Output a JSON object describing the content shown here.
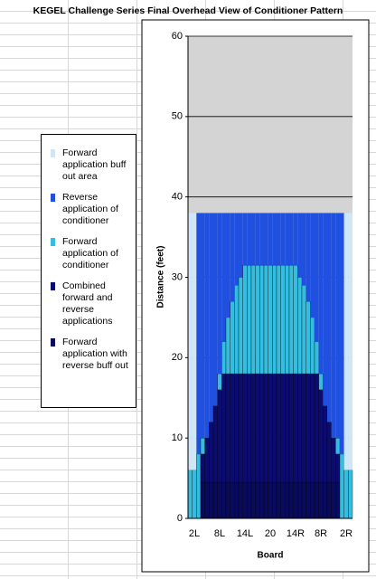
{
  "chart_data": {
    "type": "stacked_bar",
    "title": "KEGEL Challenge Series Final Overhead View of Conditioner Pattern",
    "x_label": "Board",
    "y_label": "Distance (feet)",
    "categories": [
      null,
      "2L",
      null,
      null,
      null,
      null,
      null,
      "8L",
      null,
      null,
      null,
      null,
      null,
      "14L",
      null,
      null,
      null,
      null,
      null,
      "20",
      null,
      null,
      null,
      null,
      null,
      "14R",
      null,
      null,
      null,
      null,
      null,
      "8R",
      null,
      null,
      null,
      null,
      null,
      "2R",
      null
    ],
    "series": [
      {
        "name": "Forward application buff out area",
        "color": "#cfe6f7",
        "values": [
          32,
          32,
          0,
          0,
          0,
          0,
          0,
          0,
          0,
          0,
          0,
          0,
          0,
          0,
          0,
          0,
          0,
          0,
          0,
          0,
          0,
          0,
          0,
          0,
          0,
          0,
          0,
          0,
          0,
          0,
          0,
          0,
          0,
          0,
          0,
          0,
          0,
          32,
          32
        ]
      },
      {
        "name": "Reverse application of conditioner",
        "color": "#2050e0",
        "values": [
          0,
          0,
          30,
          28,
          28,
          26,
          24,
          20,
          16,
          13,
          11,
          9,
          8,
          6.5,
          6.5,
          6.5,
          6.5,
          6.5,
          6.5,
          6.5,
          6.5,
          6.5,
          6.5,
          6.5,
          6.5,
          6.5,
          8,
          9,
          11,
          13,
          16,
          20,
          24,
          26,
          28,
          28,
          30,
          0,
          0
        ]
      },
      {
        "name": "Forward application of conditioner",
        "color": "#35bde0",
        "values": [
          6,
          6,
          8,
          2,
          0,
          0,
          0,
          2,
          4,
          7,
          9,
          11,
          12,
          13.5,
          13.5,
          13.5,
          13.5,
          13.5,
          13.5,
          13.5,
          13.5,
          13.5,
          13.5,
          13.5,
          13.5,
          13.5,
          12,
          11,
          9,
          7,
          4,
          2,
          0,
          0,
          0,
          2,
          8,
          6,
          6
        ]
      },
      {
        "name": "Combined forward and reverse applications",
        "color": "#0c0c70",
        "values": [
          0,
          0,
          0,
          3.5,
          5.5,
          7.5,
          9.5,
          11.5,
          13.5,
          13.5,
          13.5,
          13.5,
          13.5,
          13.5,
          13.5,
          13.5,
          13.5,
          13.5,
          13.5,
          13.5,
          13.5,
          13.5,
          13.5,
          13.5,
          13.5,
          13.5,
          13.5,
          13.5,
          13.5,
          13.5,
          13.5,
          11.5,
          9.5,
          7.5,
          5.5,
          3.5,
          0,
          0,
          0
        ]
      },
      {
        "name": "Forward application with reverse buff out",
        "color": "#0a0a5c",
        "values": [
          0,
          0,
          0,
          4.5,
          4.5,
          4.5,
          4.5,
          4.5,
          4.5,
          4.5,
          4.5,
          4.5,
          4.5,
          4.5,
          4.5,
          4.5,
          4.5,
          4.5,
          4.5,
          4.5,
          4.5,
          4.5,
          4.5,
          4.5,
          4.5,
          4.5,
          4.5,
          4.5,
          4.5,
          4.5,
          4.5,
          4.5,
          4.5,
          4.5,
          4.5,
          4.5,
          0,
          0,
          0
        ]
      }
    ],
    "ylim": [
      0,
      60
    ],
    "yticks": [
      0,
      10,
      20,
      30,
      40,
      50,
      60
    ],
    "grid": true
  }
}
